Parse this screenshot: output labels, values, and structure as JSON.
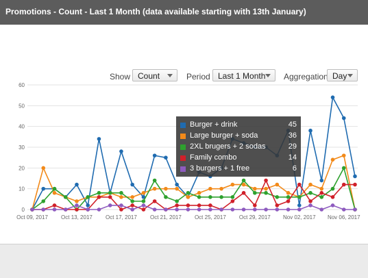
{
  "window": {
    "title": "Promotions - Count - Last 1 Month (data available starting with 13th January)"
  },
  "controls": {
    "show_label": "Show",
    "show_value": "Count",
    "period_label": "Period",
    "period_value": "Last 1 Month",
    "aggregation_label": "Aggregation",
    "aggregation_value": "Day"
  },
  "tooltip": {
    "rows": [
      {
        "name": "Burger + drink",
        "value": "45",
        "color": "#1f6bb0"
      },
      {
        "name": "Large burger + soda",
        "value": "36",
        "color": "#f28a1a"
      },
      {
        "name": "2XL brugers + 2 sodas",
        "value": "29",
        "color": "#2ea12e"
      },
      {
        "name": "Family combo",
        "value": "14",
        "color": "#d0202a"
      },
      {
        "name": "3 burgers + 1 free",
        "value": "6",
        "color": "#8e5bbf"
      }
    ]
  },
  "chart_data": {
    "type": "line",
    "ylim": [
      0,
      60
    ],
    "yticks": [
      "0",
      "10",
      "20",
      "30",
      "40",
      "50",
      "60"
    ],
    "xtick_labels": [
      "Oct 09, 2017",
      "Oct 13, 2017",
      "Oct 17, 2017",
      "Oct 21, 2017",
      "Oct 25, 2017",
      "Oct 29, 2017",
      "Nov 02, 2017",
      "Nov 06, 2017"
    ],
    "xtick_positions": [
      0,
      4,
      8,
      12,
      16,
      20,
      24,
      28
    ],
    "grid": true,
    "series": [
      {
        "name": "Burger + drink",
        "color": "#1f6bb0",
        "values": [
          0,
          10,
          10,
          6,
          12,
          2,
          34,
          8,
          28,
          12,
          6,
          26,
          25,
          12,
          6,
          18,
          16,
          20,
          34,
          32,
          30,
          30,
          26,
          38,
          2,
          38,
          14,
          54,
          44,
          16
        ]
      },
      {
        "name": "Large burger + soda",
        "color": "#f28a1a",
        "values": [
          0,
          20,
          8,
          6,
          4,
          6,
          6,
          8,
          6,
          6,
          8,
          10,
          10,
          10,
          6,
          8,
          10,
          10,
          12,
          12,
          10,
          10,
          12,
          8,
          6,
          12,
          10,
          24,
          26,
          0
        ]
      },
      {
        "name": "2XL brugers + 2 sodas",
        "color": "#2ea12e",
        "values": [
          0,
          4,
          10,
          6,
          0,
          6,
          8,
          8,
          8,
          4,
          4,
          14,
          6,
          4,
          8,
          6,
          6,
          6,
          6,
          14,
          8,
          8,
          6,
          6,
          6,
          8,
          6,
          10,
          20,
          0
        ]
      },
      {
        "name": "Family combo",
        "color": "#d0202a",
        "values": [
          0,
          0,
          2,
          0,
          0,
          0,
          6,
          6,
          0,
          2,
          0,
          4,
          0,
          2,
          2,
          2,
          2,
          0,
          4,
          8,
          2,
          14,
          2,
          4,
          12,
          4,
          8,
          6,
          12,
          12
        ]
      },
      {
        "name": "3 burgers + 1 free",
        "color": "#8e5bbf",
        "values": [
          0,
          0,
          0,
          0,
          2,
          0,
          0,
          2,
          2,
          0,
          2,
          0,
          0,
          0,
          0,
          0,
          0,
          0,
          0,
          0,
          0,
          0,
          0,
          0,
          0,
          2,
          0,
          2,
          0,
          0
        ]
      }
    ]
  }
}
